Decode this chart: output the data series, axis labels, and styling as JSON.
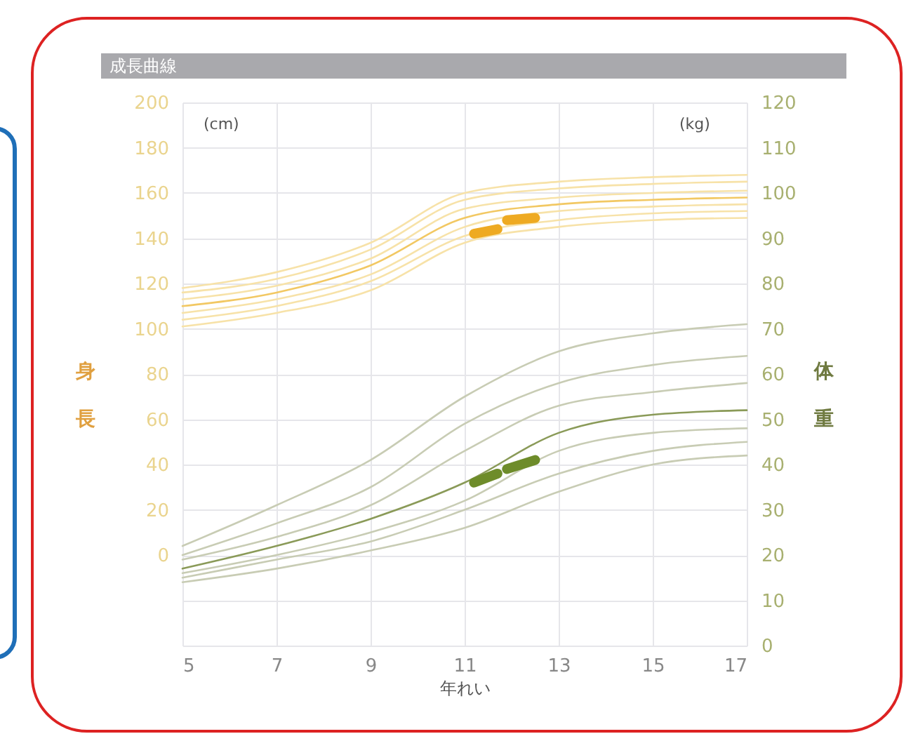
{
  "chart_data": {
    "type": "line",
    "title": "成長曲線",
    "xlabel": "年れい",
    "ylabel": "身長",
    "y2label": "体重",
    "annotations": [
      "(cm)",
      "(kg)"
    ],
    "x": [
      5,
      7,
      9,
      11,
      13,
      15,
      17
    ],
    "xlim": [
      5,
      17
    ],
    "xticks": [
      5,
      7,
      9,
      11,
      13,
      15,
      17
    ],
    "ylim": [
      -40,
      200
    ],
    "yticks": [
      0,
      20,
      40,
      60,
      80,
      100,
      120,
      140,
      160,
      180,
      200
    ],
    "y2lim": [
      0,
      120
    ],
    "y2ticks": [
      0,
      10,
      20,
      30,
      40,
      50,
      60,
      70,
      80,
      90,
      100,
      110,
      120
    ],
    "grid": true,
    "legend": false,
    "series": [
      {
        "color": "#f7e2a8",
        "values": [
          101,
          107,
          117,
          138,
          145,
          148,
          149
        ]
      },
      {
        "color": "#f7e2a8",
        "values": [
          104,
          110,
          121,
          141,
          148,
          151,
          152
        ]
      },
      {
        "color": "#f7e2a8",
        "values": [
          107,
          113,
          124,
          145,
          152,
          154,
          155
        ]
      },
      {
        "color": "#f2c863",
        "values": [
          110,
          116,
          128,
          149,
          155,
          157,
          158
        ]
      },
      {
        "color": "#f7e2a8",
        "values": [
          113,
          119,
          131,
          153,
          158,
          160,
          161
        ]
      },
      {
        "color": "#f7e2a8",
        "values": [
          116,
          122,
          135,
          157,
          162,
          164,
          165
        ]
      },
      {
        "color": "#f7e2a8",
        "values": [
          118,
          125,
          138,
          160,
          165,
          167,
          168
        ]
      },
      {
        "color": "#eeaa22",
        "x": [
          11.2,
          11.7
        ],
        "values": [
          142,
          144
        ]
      },
      {
        "color": "#eeaa22",
        "x": [
          11.9,
          12.5
        ],
        "values": [
          148,
          149
        ]
      },
      {
        "color": "#c8ccb4",
        "axis": "y2",
        "values": [
          14,
          17,
          21,
          26,
          34,
          40,
          42
        ]
      },
      {
        "color": "#c8ccb4",
        "axis": "y2",
        "values": [
          15,
          19,
          23,
          30,
          38,
          43,
          45
        ]
      },
      {
        "color": "#c8ccb4",
        "axis": "y2",
        "values": [
          16,
          20,
          25,
          32,
          43,
          47,
          48
        ]
      },
      {
        "color": "#8a9a58",
        "axis": "y2",
        "values": [
          17,
          22,
          28,
          36,
          47,
          51,
          52
        ]
      },
      {
        "color": "#c8ccb4",
        "axis": "y2",
        "values": [
          19,
          24,
          31,
          43,
          53,
          56,
          58
        ]
      },
      {
        "color": "#c8ccb4",
        "axis": "y2",
        "values": [
          20,
          27,
          35,
          49,
          58,
          62,
          64
        ]
      },
      {
        "color": "#c8ccb4",
        "axis": "y2",
        "values": [
          22,
          31,
          41,
          55,
          65,
          69,
          71
        ]
      },
      {
        "color": "#6e8c2a",
        "axis": "y2",
        "x": [
          11.2,
          11.7
        ],
        "values": [
          36,
          38
        ]
      },
      {
        "color": "#6e8c2a",
        "axis": "y2",
        "x": [
          11.9,
          12.5
        ],
        "values": [
          39,
          41
        ]
      }
    ]
  }
}
